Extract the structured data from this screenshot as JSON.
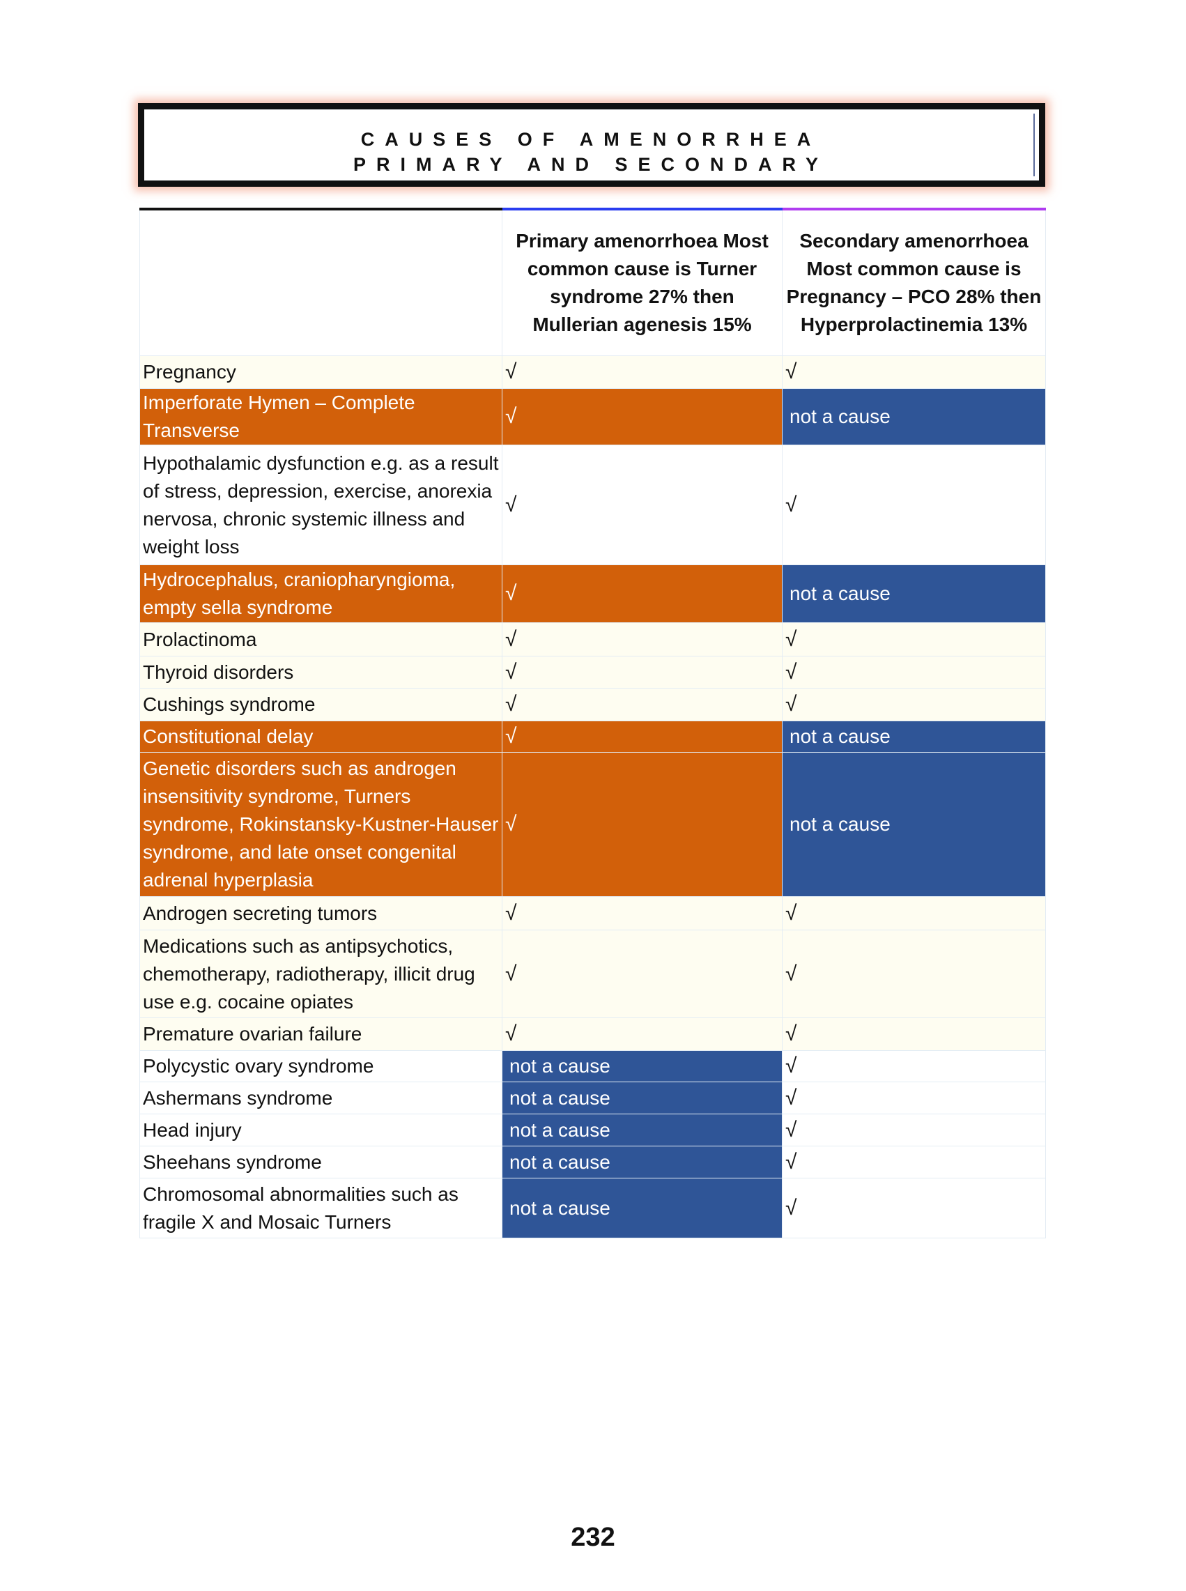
{
  "title": {
    "line1": "CAUSES OF AMENORRHEA",
    "line2": "PRIMARY AND SECONDARY"
  },
  "colors": {
    "orange": "#d2600a",
    "blue": "#2f5597",
    "cream": "#fefdf1"
  },
  "table": {
    "headers": [
      "",
      "Primary amenorrhoea Most common cause is Turner syndrome 27% then Mullerian agenesis 15%",
      "Secondary amenorrhoea Most common cause is Pregnancy – PCO 28% then Hyperprolactinemia 13%"
    ],
    "rows": [
      {
        "cause": "Pregnancy",
        "primary": "√",
        "secondary": "√",
        "style": "cream"
      },
      {
        "cause": "Imperforate Hymen – Complete Transverse",
        "primary": "√",
        "secondary": "not a cause",
        "style": "highlight"
      },
      {
        "cause": "Hypothalamic dysfunction e.g. as a result of stress, depression, exercise, anorexia nervosa, chronic systemic illness and weight loss",
        "primary": "√",
        "secondary": "√",
        "style": "white"
      },
      {
        "cause": "Hydrocephalus, craniopharyngioma, empty sella syndrome",
        "primary": "√",
        "secondary": "not a cause",
        "style": "highlight"
      },
      {
        "cause": "Prolactinoma",
        "primary": "√",
        "secondary": "√",
        "style": "cream"
      },
      {
        "cause": "Thyroid disorders",
        "primary": "√",
        "secondary": "√",
        "style": "cream"
      },
      {
        "cause": "Cushings syndrome",
        "primary": "√",
        "secondary": "√",
        "style": "cream"
      },
      {
        "cause": "Constitutional delay",
        "primary": "√",
        "secondary": "not a cause",
        "style": "highlight"
      },
      {
        "cause": "Genetic disorders such as androgen insensitivity syndrome, Turners syndrome, Rokinstansky-Kustner-Hauser syndrome, and late onset congenital adrenal hyperplasia",
        "primary": "√",
        "secondary": "not a cause",
        "style": "highlight"
      },
      {
        "cause": "Androgen secreting tumors",
        "primary": "√",
        "secondary": "√",
        "style": "cream"
      },
      {
        "cause": "Medications such as antipsychotics, chemotherapy, radiotherapy, illicit drug use e.g. cocaine opiates",
        "primary": "√",
        "secondary": "√",
        "style": "cream"
      },
      {
        "cause": "Premature ovarian failure",
        "primary": "√",
        "secondary": "√",
        "style": "cream"
      },
      {
        "cause": "Polycystic ovary syndrome",
        "primary": "not a cause",
        "secondary": "√",
        "style": "white"
      },
      {
        "cause": "Ashermans syndrome",
        "primary": "not a cause",
        "secondary": "√",
        "style": "white"
      },
      {
        "cause": "Head injury",
        "primary": "not a cause",
        "secondary": "√",
        "style": "white"
      },
      {
        "cause": "Sheehans syndrome",
        "primary": "not a cause",
        "secondary": "√",
        "style": "white"
      },
      {
        "cause": "Chromosomal abnormalities such as fragile X and Mosaic  Turners",
        "primary": "not a cause",
        "secondary": "√",
        "style": "white"
      }
    ]
  },
  "page_number": "232"
}
